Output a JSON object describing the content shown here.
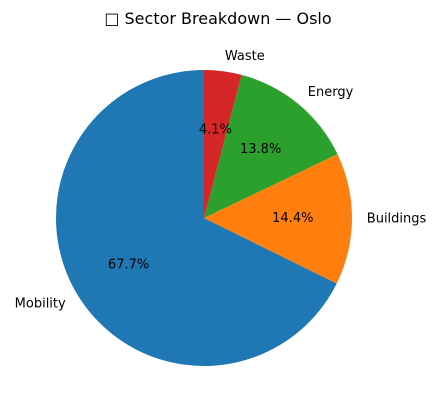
{
  "chart_data": {
    "type": "pie",
    "title": "□ Sector Breakdown — Oslo",
    "categories": [
      "Mobility",
      "Buildings",
      "Energy",
      "Waste"
    ],
    "values": [
      67.7,
      14.4,
      13.8,
      4.1
    ],
    "value_labels": [
      "67.7%",
      "14.4%",
      "13.8%",
      "4.1%"
    ],
    "colors": [
      "#1f77b4",
      "#ff7f0e",
      "#2ca02c",
      "#d62728"
    ],
    "start_angle_deg": 90,
    "direction": "clockwise-from-top-in-reverse-order",
    "legend": "none"
  }
}
